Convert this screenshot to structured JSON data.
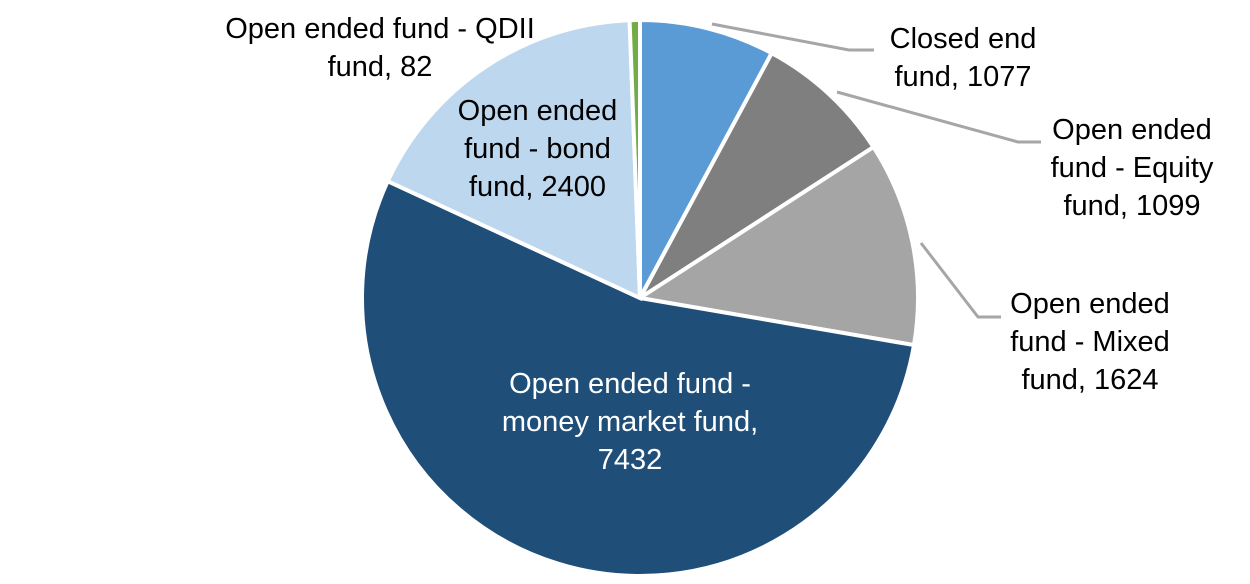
{
  "chart_data": {
    "type": "pie",
    "title": "",
    "legend_position": "none",
    "background": "#FFFFFF",
    "start_angle_deg": -90,
    "direction": "clockwise",
    "slice_border_color": "#FFFFFF",
    "leader_line_color": "#A6A6A6",
    "label_text_color": "#000000",
    "segments": [
      {
        "label": "Closed end fund",
        "value": 1077,
        "color": "#5B9BD5",
        "display_text": "Closed end fund, 1077",
        "label_placement": "outside-right-with-leader",
        "label_color": "#000000"
      },
      {
        "label": "Open ended fund - Equity fund",
        "value": 1099,
        "color": "#7F7F7F",
        "display_text": "Open ended fund - Equity fund, 1099",
        "label_placement": "outside-right-with-leader",
        "label_color": "#000000"
      },
      {
        "label": "Open ended fund - Mixed fund",
        "value": 1624,
        "color": "#A5A5A5",
        "display_text": "Open ended fund - Mixed fund, 1624",
        "label_placement": "outside-right-with-leader",
        "label_color": "#000000"
      },
      {
        "label": "Open ended fund - money market fund",
        "value": 7432,
        "color": "#1F4E79",
        "display_text": "Open ended fund - money market fund, 7432",
        "label_placement": "inside",
        "label_color": "#FFFFFF"
      },
      {
        "label": "Open ended fund - bond fund",
        "value": 2400,
        "color": "#BDD7EE",
        "display_text": "Open ended fund - bond fund, 2400",
        "label_placement": "over-slice-top-left",
        "label_color": "#000000"
      },
      {
        "label": "Open ended fund - QDII fund",
        "value": 82,
        "color": "#70AD47",
        "display_text": "Open ended fund - QDII fund, 82",
        "label_placement": "outside-top-left",
        "label_color": "#000000"
      }
    ]
  }
}
